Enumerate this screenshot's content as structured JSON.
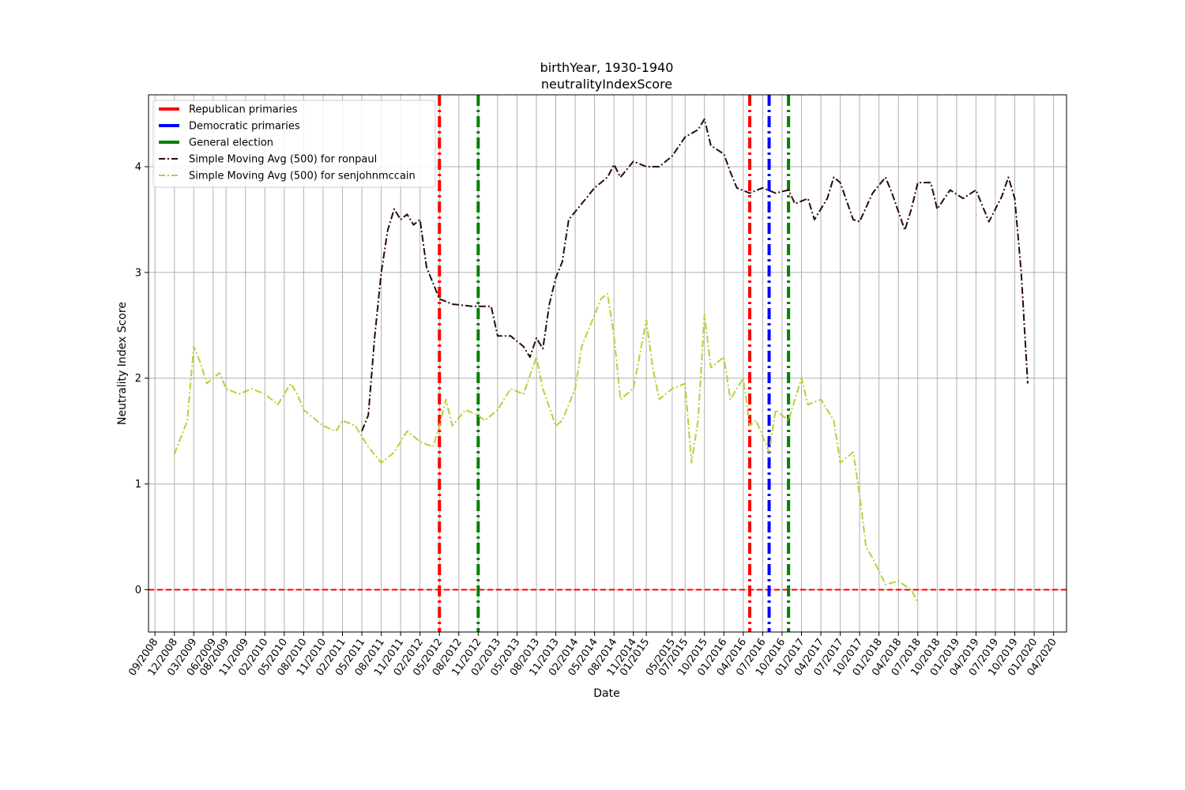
{
  "chart_data": {
    "type": "line",
    "title": "birthYear, 1930-1940",
    "subtitle": "neutralityIndexScore",
    "xlabel": "Date",
    "ylabel": "Neutrality Index Score",
    "ylim": [
      -0.4,
      4.68
    ],
    "y_ticks": [
      0,
      1,
      2,
      3,
      4
    ],
    "x_range": [
      "2008-08",
      "2020-06"
    ],
    "x_ticks": [
      "09/2008",
      "12/2008",
      "03/2009",
      "06/2009",
      "08/2009",
      "11/2009",
      "02/2010",
      "05/2010",
      "08/2010",
      "11/2010",
      "02/2011",
      "05/2011",
      "08/2011",
      "11/2011",
      "02/2012",
      "05/2012",
      "08/2012",
      "11/2012",
      "02/2013",
      "05/2013",
      "08/2013",
      "11/2013",
      "02/2014",
      "05/2014",
      "08/2014",
      "11/2014",
      "01/2015",
      "05/2015",
      "07/2015",
      "10/2015",
      "01/2016",
      "04/2016",
      "07/2016",
      "10/2016",
      "01/2017",
      "04/2017",
      "07/2017",
      "10/2017",
      "01/2018",
      "04/2018",
      "07/2018",
      "10/2018",
      "01/2019",
      "04/2019",
      "07/2019",
      "10/2019",
      "01/2020",
      "04/2020"
    ],
    "grid": true,
    "legend_position": "top-left",
    "legend": [
      {
        "label": "Republican primaries",
        "color": "#ff0000",
        "style": "solid"
      },
      {
        "label": "Democratic primaries",
        "color": "#0000ff",
        "style": "solid"
      },
      {
        "label": "General election",
        "color": "#008000",
        "style": "solid"
      },
      {
        "label": "Simple Moving Avg (500) for ronpaul",
        "color": "#2b0a0a",
        "style": "dashdot"
      },
      {
        "label": "Simple Moving Avg (500) for senjohnmccain",
        "color": "#bcce3c",
        "style": "dashdot"
      }
    ],
    "reference_lines": {
      "horizontal": {
        "y": 0,
        "color": "#ff0000",
        "style": "dashed"
      },
      "vertical": [
        {
          "date": "2012-05",
          "color": "#ff0000",
          "series": "Republican primaries"
        },
        {
          "date": "2012-11",
          "color": "#008000",
          "series": "General election"
        },
        {
          "date": "2016-05",
          "color": "#ff0000",
          "series": "Republican primaries"
        },
        {
          "date": "2016-08",
          "color": "#0000ff",
          "series": "Democratic primaries"
        },
        {
          "date": "2016-11",
          "color": "#008000",
          "series": "General election"
        }
      ]
    },
    "series": [
      {
        "name": "Simple Moving Avg (500) for ronpaul",
        "color": "#2b0a0a",
        "points": [
          [
            "2011-05",
            1.5
          ],
          [
            "2011-06",
            1.65
          ],
          [
            "2011-07",
            2.4
          ],
          [
            "2011-08",
            3.0
          ],
          [
            "2011-09",
            3.4
          ],
          [
            "2011-10",
            3.6
          ],
          [
            "2011-11",
            3.5
          ],
          [
            "2011-12",
            3.55
          ],
          [
            "2012-01",
            3.45
          ],
          [
            "2012-02",
            3.5
          ],
          [
            "2012-03",
            3.05
          ],
          [
            "2012-04",
            2.9
          ],
          [
            "2012-05",
            2.75
          ],
          [
            "2012-07",
            2.7
          ],
          [
            "2012-10",
            2.68
          ],
          [
            "2013-01",
            2.68
          ],
          [
            "2013-02",
            2.4
          ],
          [
            "2013-04",
            2.4
          ],
          [
            "2013-06",
            2.3
          ],
          [
            "2013-07",
            2.2
          ],
          [
            "2013-08",
            2.38
          ],
          [
            "2013-09",
            2.28
          ],
          [
            "2013-10",
            2.7
          ],
          [
            "2013-11",
            2.95
          ],
          [
            "2013-12",
            3.1
          ],
          [
            "2014-01",
            3.5
          ],
          [
            "2014-03",
            3.65
          ],
          [
            "2014-05",
            3.8
          ],
          [
            "2014-07",
            3.9
          ],
          [
            "2014-08",
            4.02
          ],
          [
            "2014-09",
            3.9
          ],
          [
            "2014-11",
            4.05
          ],
          [
            "2015-01",
            4.0
          ],
          [
            "2015-03",
            4.0
          ],
          [
            "2015-05",
            4.1
          ],
          [
            "2015-07",
            4.28
          ],
          [
            "2015-09",
            4.35
          ],
          [
            "2015-10",
            4.45
          ],
          [
            "2015-11",
            4.2
          ],
          [
            "2016-01",
            4.12
          ],
          [
            "2016-02",
            3.95
          ],
          [
            "2016-03",
            3.8
          ],
          [
            "2016-05",
            3.75
          ],
          [
            "2016-07",
            3.8
          ],
          [
            "2016-09",
            3.75
          ],
          [
            "2016-11",
            3.78
          ],
          [
            "2016-12",
            3.65
          ],
          [
            "2017-02",
            3.7
          ],
          [
            "2017-03",
            3.5
          ],
          [
            "2017-05",
            3.7
          ],
          [
            "2017-06",
            3.9
          ],
          [
            "2017-07",
            3.85
          ],
          [
            "2017-09",
            3.5
          ],
          [
            "2017-10",
            3.48
          ],
          [
            "2017-12",
            3.75
          ],
          [
            "2018-02",
            3.9
          ],
          [
            "2018-03",
            3.75
          ],
          [
            "2018-05",
            3.4
          ],
          [
            "2018-06",
            3.6
          ],
          [
            "2018-07",
            3.85
          ],
          [
            "2018-09",
            3.85
          ],
          [
            "2018-10",
            3.6
          ],
          [
            "2018-12",
            3.78
          ],
          [
            "2019-02",
            3.7
          ],
          [
            "2019-04",
            3.78
          ],
          [
            "2019-06",
            3.48
          ],
          [
            "2019-08",
            3.72
          ],
          [
            "2019-09",
            3.9
          ],
          [
            "2019-10",
            3.7
          ],
          [
            "2019-11",
            3.0
          ],
          [
            "2019-12",
            1.95
          ]
        ]
      },
      {
        "name": "Simple Moving Avg (500) for senjohnmccain",
        "color": "#bcce3c",
        "points": [
          [
            "2008-12",
            1.28
          ],
          [
            "2009-02",
            1.6
          ],
          [
            "2009-03",
            2.3
          ],
          [
            "2009-04",
            2.15
          ],
          [
            "2009-05",
            1.95
          ],
          [
            "2009-07",
            2.05
          ],
          [
            "2009-08",
            1.9
          ],
          [
            "2009-10",
            1.85
          ],
          [
            "2009-12",
            1.9
          ],
          [
            "2010-02",
            1.85
          ],
          [
            "2010-04",
            1.75
          ],
          [
            "2010-06",
            1.95
          ],
          [
            "2010-07",
            1.85
          ],
          [
            "2010-08",
            1.7
          ],
          [
            "2010-09",
            1.65
          ],
          [
            "2010-11",
            1.55
          ],
          [
            "2011-01",
            1.5
          ],
          [
            "2011-02",
            1.6
          ],
          [
            "2011-04",
            1.55
          ],
          [
            "2011-05",
            1.45
          ],
          [
            "2011-06",
            1.35
          ],
          [
            "2011-08",
            1.2
          ],
          [
            "2011-10",
            1.3
          ],
          [
            "2011-12",
            1.5
          ],
          [
            "2012-02",
            1.4
          ],
          [
            "2012-04",
            1.35
          ],
          [
            "2012-05",
            1.55
          ],
          [
            "2012-06",
            1.8
          ],
          [
            "2012-07",
            1.55
          ],
          [
            "2012-09",
            1.7
          ],
          [
            "2012-11",
            1.65
          ],
          [
            "2012-12",
            1.6
          ],
          [
            "2013-02",
            1.7
          ],
          [
            "2013-04",
            1.9
          ],
          [
            "2013-06",
            1.85
          ],
          [
            "2013-08",
            2.2
          ],
          [
            "2013-09",
            1.9
          ],
          [
            "2013-11",
            1.55
          ],
          [
            "2013-12",
            1.6
          ],
          [
            "2014-02",
            1.9
          ],
          [
            "2014-03",
            2.3
          ],
          [
            "2014-05",
            2.6
          ],
          [
            "2014-06",
            2.75
          ],
          [
            "2014-07",
            2.8
          ],
          [
            "2014-08",
            2.4
          ],
          [
            "2014-09",
            1.8
          ],
          [
            "2014-11",
            1.9
          ],
          [
            "2015-01",
            2.55
          ],
          [
            "2015-02",
            2.1
          ],
          [
            "2015-03",
            1.8
          ],
          [
            "2015-05",
            1.9
          ],
          [
            "2015-07",
            1.95
          ],
          [
            "2015-08",
            1.2
          ],
          [
            "2015-09",
            1.6
          ],
          [
            "2015-10",
            2.6
          ],
          [
            "2015-11",
            2.1
          ],
          [
            "2016-01",
            2.2
          ],
          [
            "2016-02",
            1.8
          ],
          [
            "2016-04",
            2.0
          ],
          [
            "2016-05",
            1.55
          ],
          [
            "2016-06",
            1.6
          ],
          [
            "2016-08",
            1.3
          ],
          [
            "2016-09",
            1.7
          ],
          [
            "2016-11",
            1.6
          ],
          [
            "2017-01",
            2.0
          ],
          [
            "2017-02",
            1.75
          ],
          [
            "2017-04",
            1.8
          ],
          [
            "2017-06",
            1.6
          ],
          [
            "2017-07",
            1.2
          ],
          [
            "2017-09",
            1.3
          ],
          [
            "2017-10",
            0.9
          ],
          [
            "2017-11",
            0.4
          ],
          [
            "2017-12",
            0.3
          ],
          [
            "2018-02",
            0.05
          ],
          [
            "2018-04",
            0.08
          ],
          [
            "2018-06",
            0.0
          ],
          [
            "2018-07",
            -0.12
          ]
        ]
      }
    ]
  }
}
